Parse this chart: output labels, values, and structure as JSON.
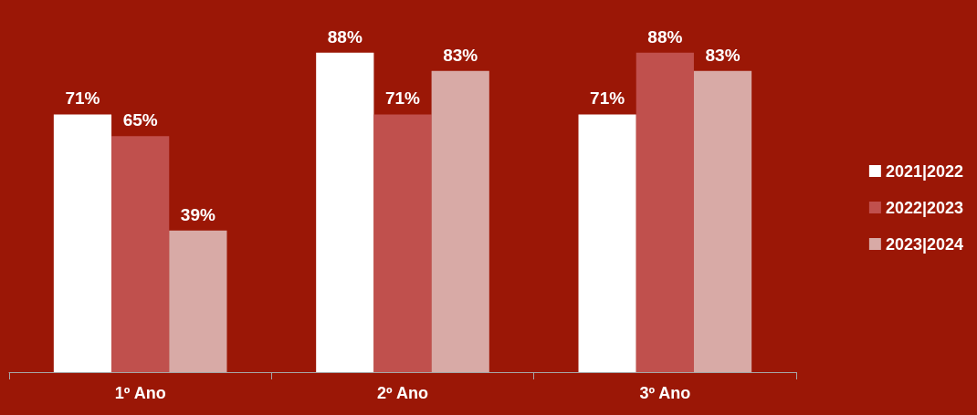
{
  "chart_data": {
    "type": "bar",
    "categories": [
      "1º Ano",
      "2º Ano",
      "3º Ano"
    ],
    "series": [
      {
        "name": "2021|2022",
        "color": "#ffffff",
        "values": [
          71,
          88,
          71
        ],
        "value_labels": [
          "71%",
          "88%",
          "71%"
        ]
      },
      {
        "name": "2022|2023",
        "color": "#c0504d",
        "values": [
          65,
          71,
          88
        ],
        "value_labels": [
          "65%",
          "71%",
          "88%"
        ]
      },
      {
        "name": "2023|2024",
        "color": "#d8aaa6",
        "values": [
          39,
          83,
          83
        ],
        "value_labels": [
          "39%",
          "83%",
          "83%"
        ]
      }
    ],
    "grid": false,
    "legend": "right",
    "tick_labels": "x"
  }
}
